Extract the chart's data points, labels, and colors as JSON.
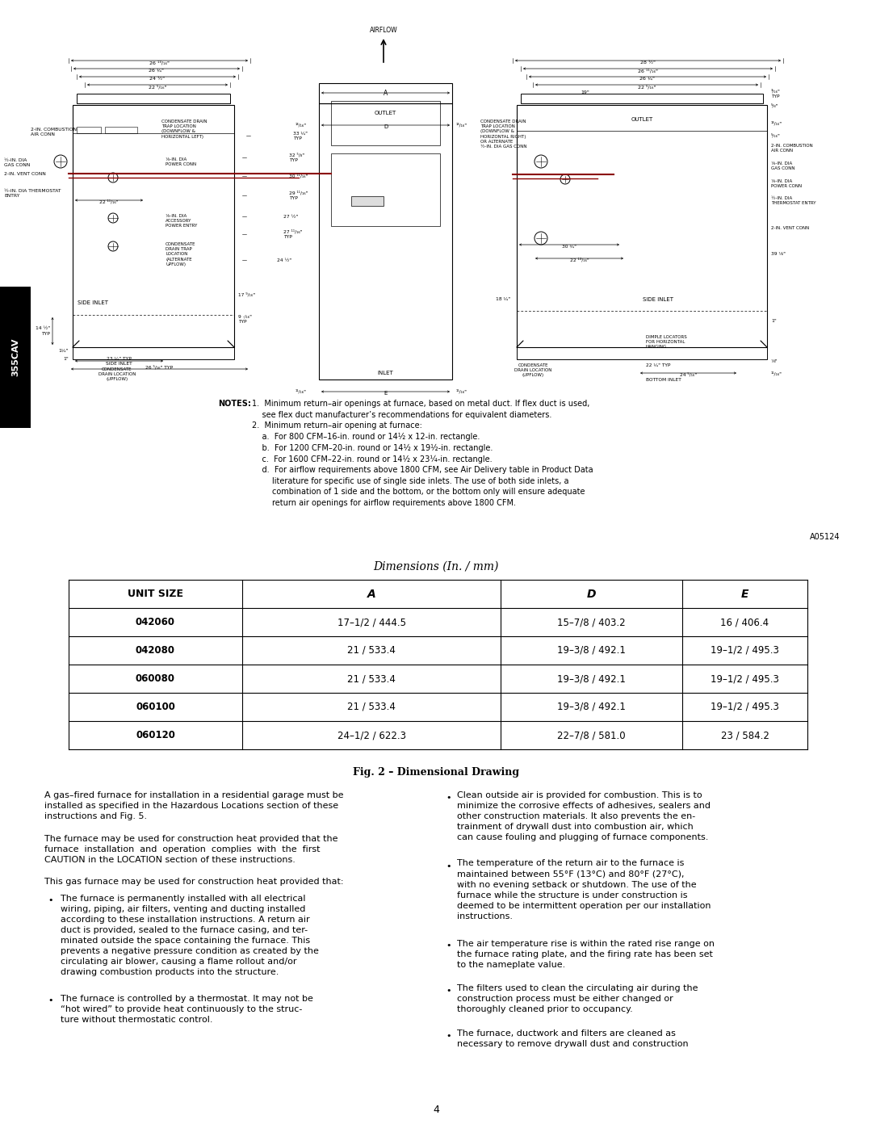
{
  "page_bg": "#ffffff",
  "ref_code": "A05124",
  "page_number": "4",
  "table_title": "Dimensions (In. / mm)",
  "fig_caption": "Fig. 2 – Dimensional Drawing",
  "table_headers": [
    "UNIT SIZE",
    "A",
    "D",
    "E"
  ],
  "table_rows": [
    [
      "042060",
      "17–1/2 / 444.5",
      "15–7/8 / 403.2",
      "16 / 406.4"
    ],
    [
      "042080",
      "21 / 533.4",
      "19–3/8 / 492.1",
      "19–1/2 / 495.3"
    ],
    [
      "060080",
      "21 / 533.4",
      "19–3/8 / 492.1",
      "19–1/2 / 495.3"
    ],
    [
      "060100",
      "21 / 533.4",
      "19–3/8 / 492.1",
      "19–1/2 / 495.3"
    ],
    [
      "060120",
      "24–1/2 / 622.3",
      "22–7/8 / 581.0",
      "23 / 584.2"
    ]
  ],
  "notes_line1": "NOTES:  1.  Minimum return-air openings at furnace, based on metal duct. If flex duct is used,",
  "notes_line2": "            see flex duct manufacturer’s recommendations for equivalent diameters.",
  "notes_line3": "        2.  Minimum return-air opening at furnace:",
  "notes_line4": "            a.  For 800 CFM–16-in. round or 14½ x 12-in. rectangle.",
  "notes_line5": "            b.  For 1200 CFM–20-in. round or 14½ x 19½-in. rectangle.",
  "notes_line6": "            c.  For 1600 CFM–22-in. round or 14½ x 23¼-in. rectangle.",
  "notes_line7": "            d.  For airflow requirements above 1800 CFM, see Air Delivery table in Product Data",
  "notes_line8": "                literature for specific use of single side inlets. The use of both side inlets, a",
  "notes_line9": "                combination of 1 side and the bottom, or the bottom only will ensure adequate",
  "notes_line10": "                return air openings for airflow requirements above 1800 CFM.",
  "body_col1_p1": "A gas–fired furnace for installation in a residential garage must be\ninstalled as specified in the Hazardous Locations section of these\ninstructions and Fig. 5.",
  "body_col1_p2": "The furnace may be used for construction heat provided that the\nfurnace  installation  and  operation  complies  with  the  first\nCAUTION in the LOCATION section of these instructions.",
  "body_col1_p3": "This gas furnace may be used for construction heat provided that:",
  "body_col1_b1": "The furnace is permanently installed with all electrical\nwiring, piping, air filters, venting and ducting installed\naccording to these installation instructions. A return air\nduct is provided, sealed to the furnace casing, and ter-\nminated outside the space containing the furnace. This\nprevents a negative pressure condition as created by the\ncirculating air blower, causing a flame rollout and/or\ndrawing combustion products into the structure.",
  "body_col1_b2": "The furnace is controlled by a thermostat. It may not be\n“hot wired” to provide heat continuously to the struc-\nture without thermostatic control.",
  "body_col2_b1": "Clean outside air is provided for combustion. This is to\nminimize the corrosive effects of adhesives, sealers and\nother construction materials. It also prevents the en-\ntrainment of drywall dust into combustion air, which\ncan cause fouling and plugging of furnace components.",
  "body_col2_b2": "The temperature of the return air to the furnace is\nmaintained between 55°F (13°C) and 80°F (27°C),\nwith no evening setback or shutdown. The use of the\nfurnace while the structure is under construction is\ndeemed to be intermittent operation per our installation\ninstructions.",
  "body_col2_b3": "The air temperature rise is within the rated rise range on\nthe furnace rating plate, and the firing rate has been set\nto the nameplate value.",
  "body_col2_b4": "The filters used to clean the circulating air during the\nconstruction process must be either changed or\nthoroughly cleaned prior to occupancy.",
  "body_col2_b5": "The furnace, ductwork and filters are cleaned as\nnecessary to remove drywall dust and construction"
}
